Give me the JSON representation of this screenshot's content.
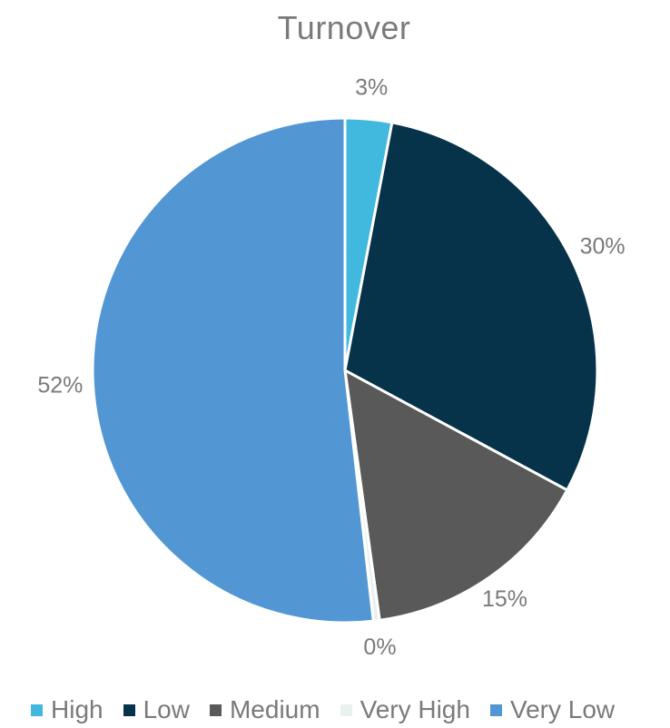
{
  "chart_data": {
    "type": "pie",
    "title": "Turnover",
    "categories": [
      "High",
      "Low",
      "Medium",
      "Very High",
      "Very Low"
    ],
    "values": [
      3,
      30,
      15,
      0.4,
      52
    ],
    "data_labels": [
      "3%",
      "30%",
      "15%",
      "0%",
      "52%"
    ],
    "colors": [
      "#41b8dd",
      "#06324a",
      "#595959",
      "#e9f1ee",
      "#5297d3"
    ],
    "start_angle": "12 o'clock",
    "direction": "clockwise",
    "legend_position": "bottom"
  }
}
